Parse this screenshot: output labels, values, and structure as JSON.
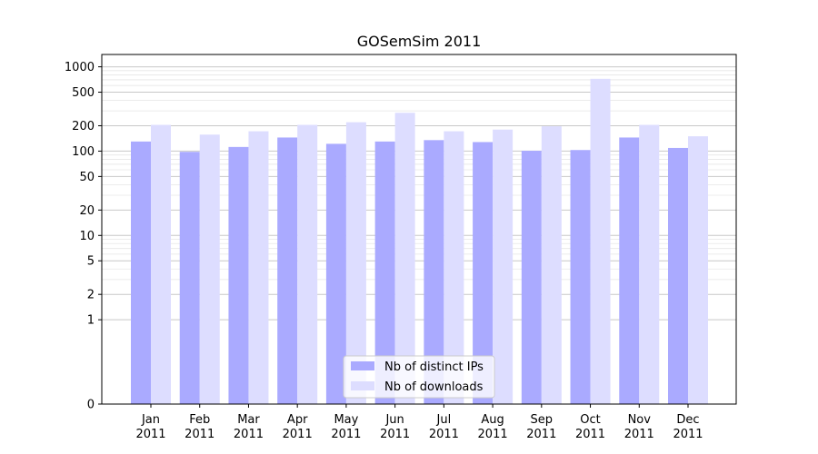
{
  "chart_data": {
    "type": "bar",
    "title": "GOSemSim 2011",
    "xlabel": "",
    "ylabel": "",
    "yscale": "symlog",
    "ylim": [
      0,
      1400
    ],
    "yticks": [
      0,
      1,
      2,
      5,
      10,
      20,
      50,
      100,
      200,
      500,
      1000
    ],
    "ytick_labels": [
      "0",
      "1",
      "2",
      "5",
      "10",
      "20",
      "50",
      "100",
      "200",
      "500",
      "1000"
    ],
    "grid": true,
    "legend_position": "bottom-center",
    "categories": [
      [
        "Jan",
        "2011"
      ],
      [
        "Feb",
        "2011"
      ],
      [
        "Mar",
        "2011"
      ],
      [
        "Apr",
        "2011"
      ],
      [
        "May",
        "2011"
      ],
      [
        "Jun",
        "2011"
      ],
      [
        "Jul",
        "2011"
      ],
      [
        "Aug",
        "2011"
      ],
      [
        "Sep",
        "2011"
      ],
      [
        "Oct",
        "2011"
      ],
      [
        "Nov",
        "2011"
      ],
      [
        "Dec",
        "2011"
      ]
    ],
    "series": [
      {
        "name": "Nb of distinct IPs",
        "color": "#aaaaff",
        "values": [
          130,
          98,
          112,
          145,
          122,
          130,
          135,
          128,
          101,
          103,
          145,
          109
        ]
      },
      {
        "name": "Nb of downloads",
        "color": "#ddddff",
        "values": [
          205,
          157,
          172,
          205,
          220,
          285,
          172,
          180,
          197,
          720,
          205,
          150
        ]
      }
    ]
  }
}
